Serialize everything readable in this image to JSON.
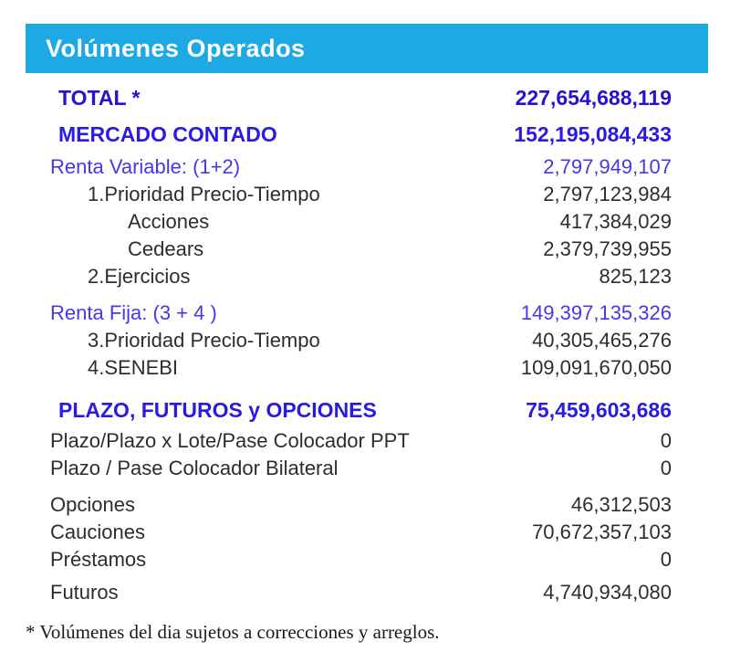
{
  "header": {
    "title": "Volúmenes Operados"
  },
  "colors": {
    "header_bar": "#1ea8e4",
    "header_text": "#ffffff",
    "total_blue": "#2413d0",
    "section_blue": "#2b19e4",
    "renta_blue": "#4439e6",
    "body_text": "#2d2d2d"
  },
  "table": {
    "rows": [
      {
        "label": "TOTAL *",
        "value": "227,654,688,119",
        "kind": "total",
        "indent": 0,
        "gap": "sm"
      },
      {
        "label": "MERCADO CONTADO",
        "value": "152,195,084,433",
        "kind": "head",
        "indent": 0,
        "gap": "md"
      },
      {
        "label": "Renta Variable: (1+2)",
        "value": "2,797,949,107",
        "kind": "renta",
        "indent": 1,
        "gap": "sm"
      },
      {
        "label": "1.Prioridad Precio-Tiempo",
        "value": "2,797,123,984",
        "kind": "plain",
        "indent": 2,
        "gap": ""
      },
      {
        "label": "Acciones",
        "value": "417,384,029",
        "kind": "plain",
        "indent": 3,
        "gap": ""
      },
      {
        "label": "Cedears",
        "value": "2,379,739,955",
        "kind": "plain",
        "indent": 3,
        "gap": ""
      },
      {
        "label": "2.Ejercicios",
        "value": "825,123",
        "kind": "plain",
        "indent": 2,
        "gap": ""
      },
      {
        "label": "Renta Fija: (3 + 4 )",
        "value": "149,397,135,326",
        "kind": "renta",
        "indent": 1,
        "gap": "md"
      },
      {
        "label": "3.Prioridad Precio-Tiempo",
        "value": "40,305,465,276",
        "kind": "plain",
        "indent": 2,
        "gap": ""
      },
      {
        "label": "4.SENEBI",
        "value": "109,091,670,050",
        "kind": "plain",
        "indent": 2,
        "gap": ""
      },
      {
        "label": "PLAZO, FUTUROS y OPCIONES",
        "value": "75,459,603,686",
        "kind": "head",
        "indent": 0,
        "gap": "lg"
      },
      {
        "label": "Plazo/Plazo x Lote/Pase Colocador PPT",
        "value": "0",
        "kind": "plain",
        "indent": 1,
        "gap": "xs"
      },
      {
        "label": "Plazo / Pase Colocador Bilateral",
        "value": "0",
        "kind": "plain",
        "indent": 1,
        "gap": ""
      },
      {
        "label": "Opciones",
        "value": "46,312,503",
        "kind": "plain",
        "indent": 1,
        "gap": "md"
      },
      {
        "label": "Cauciones",
        "value": "70,672,357,103",
        "kind": "plain",
        "indent": 1,
        "gap": ""
      },
      {
        "label": "Préstamos",
        "value": "0",
        "kind": "plain",
        "indent": 1,
        "gap": ""
      },
      {
        "label": "Futuros",
        "value": "4,740,934,080",
        "kind": "plain",
        "indent": 1,
        "gap": "sm"
      }
    ]
  },
  "footnote": "* Volúmenes del dia sujetos a correcciones y arreglos."
}
